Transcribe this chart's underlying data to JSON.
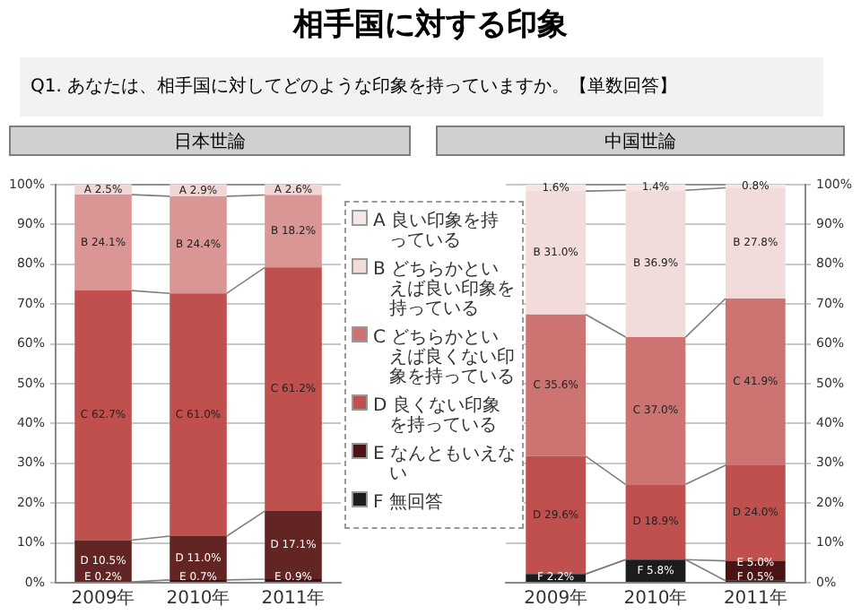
{
  "chart_data": [
    {
      "type": "other",
      "title": "相手国に対する印象",
      "subtitle": "Q1. あなたは、相手国に対してどのような印象を持っていますか。【単数回答】"
    },
    {
      "type": "bar",
      "title": "日本世論",
      "categories": [
        "2009年",
        "2010年",
        "2011年"
      ],
      "stacked": true,
      "ylim": [
        0,
        100
      ],
      "yticks": [
        {
          "value": 0,
          "label": "0%"
        },
        {
          "value": 10,
          "label": "10%"
        },
        {
          "value": 20,
          "label": "20%"
        },
        {
          "value": 30,
          "label": "30%"
        },
        {
          "value": 40,
          "label": "40%"
        },
        {
          "value": 50,
          "label": "50%"
        },
        {
          "value": 60,
          "label": "60%"
        },
        {
          "value": 70,
          "label": "70%"
        },
        {
          "value": 80,
          "label": "80%"
        },
        {
          "value": 90,
          "label": "90%"
        },
        {
          "value": 100,
          "label": "100%"
        }
      ],
      "grid": "y",
      "legend": false,
      "series": [
        {
          "color": "#3b0f0f",
          "values": [
            0.2,
            0.7,
            0.9
          ],
          "value_labels": [
            "E 0.2%",
            "E 0.7%",
            "E 0.9%"
          ]
        },
        {
          "color": "#632523",
          "values": [
            10.5,
            11.0,
            17.1
          ],
          "value_labels": [
            "D 10.5%",
            "D 11.0%",
            "D 17.1%"
          ]
        },
        {
          "color": "#c0504d",
          "values": [
            62.7,
            61.0,
            61.2
          ],
          "value_labels": [
            "C 62.7%",
            "C 61.0%",
            "C 61.2%"
          ]
        },
        {
          "color": "#d99694",
          "values": [
            24.1,
            24.4,
            18.2
          ],
          "value_labels": [
            "B 24.1%",
            "B 24.4%",
            "B 18.2%"
          ]
        },
        {
          "color": "#f2d5d5",
          "values": [
            2.5,
            2.9,
            2.6
          ],
          "value_labels": [
            "A 2.5%",
            "A 2.9%",
            "A 2.6%"
          ]
        }
      ]
    },
    {
      "type": "bar",
      "title": "中国世論",
      "categories": [
        "2009年",
        "2010年",
        "2011年"
      ],
      "stacked": true,
      "y2lim": [
        0,
        100
      ],
      "y2ticks": [
        {
          "value": 0,
          "label": "0%"
        },
        {
          "value": 10,
          "label": "10%"
        },
        {
          "value": 20,
          "label": "20%"
        },
        {
          "value": 30,
          "label": "30%"
        },
        {
          "value": 40,
          "label": "40%"
        },
        {
          "value": 50,
          "label": "50%"
        },
        {
          "value": 60,
          "label": "60%"
        },
        {
          "value": 70,
          "label": "70%"
        },
        {
          "value": 80,
          "label": "80%"
        },
        {
          "value": 90,
          "label": "90%"
        },
        {
          "value": 100,
          "label": "100%"
        }
      ],
      "grid": "y",
      "legend": "left",
      "series": [
        {
          "name": "F 無回答",
          "axis": "y2",
          "color": "#1c1c1c",
          "values": [
            2.2,
            5.8,
            0.5
          ],
          "value_labels": [
            "F 2.2%",
            "F 5.8%",
            "F 0.5%"
          ]
        },
        {
          "name": "E なんともいえない",
          "axis": "y2",
          "color": "#4a1414",
          "values": [
            null,
            null,
            5.0
          ],
          "value_labels": [
            null,
            null,
            "E 5.0%"
          ]
        },
        {
          "name": "D 良くない印象を持っている",
          "axis": "y2",
          "color": "#c0504d",
          "values": [
            29.6,
            18.9,
            24.0
          ],
          "value_labels": [
            "D 29.6%",
            "D 18.9%",
            "D 24.0%"
          ]
        },
        {
          "name": "C どちらかといえば良くない印象を持っている",
          "axis": "y2",
          "color": "#cd7472",
          "values": [
            35.6,
            37.0,
            41.9
          ],
          "value_labels": [
            "C 35.6%",
            "C 37.0%",
            "C 41.9%"
          ]
        },
        {
          "name": "B どちらかといえば良い印象を持っている",
          "axis": "y2",
          "color": "#f2dcdb",
          "values": [
            31.0,
            36.9,
            27.8
          ],
          "value_labels": [
            "B 31.0%",
            "B 36.9%",
            "B 27.8%"
          ]
        },
        {
          "name": "A 良い印象を持っている",
          "axis": "y2",
          "color": "#f7e6e6",
          "values": [
            1.6,
            1.4,
            0.8
          ],
          "value_labels": [
            "1.6%",
            "1.4%",
            "0.8%"
          ]
        }
      ]
    }
  ]
}
